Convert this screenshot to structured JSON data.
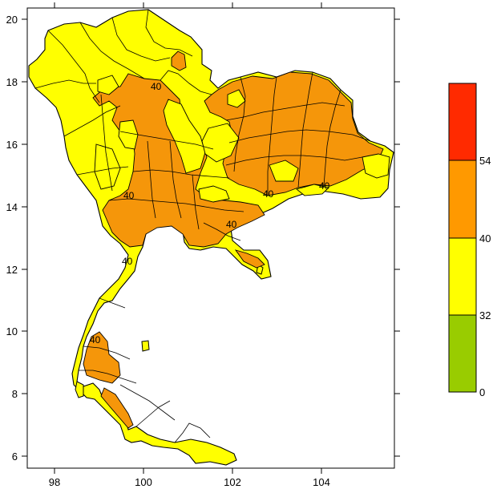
{
  "map": {
    "x_axis": {
      "ticks": [
        "98",
        "100",
        "102",
        "104"
      ]
    },
    "y_axis": {
      "ticks": [
        "20",
        "18",
        "16",
        "14",
        "12",
        "10",
        "8",
        "6"
      ]
    },
    "contour_labels": [
      "40",
      "40",
      "40",
      "40",
      "40",
      "40",
      "40"
    ]
  },
  "legend": {
    "bands": [
      {
        "color": "#ff2a00"
      },
      {
        "color": "#ff9900"
      },
      {
        "color": "#ffff00"
      },
      {
        "color": "#99cc00"
      }
    ],
    "labels": [
      "54",
      "40",
      "32",
      "0"
    ]
  },
  "colors": {
    "orange": "#f5960a",
    "yellow": "#ffff00",
    "border": "#000000"
  }
}
